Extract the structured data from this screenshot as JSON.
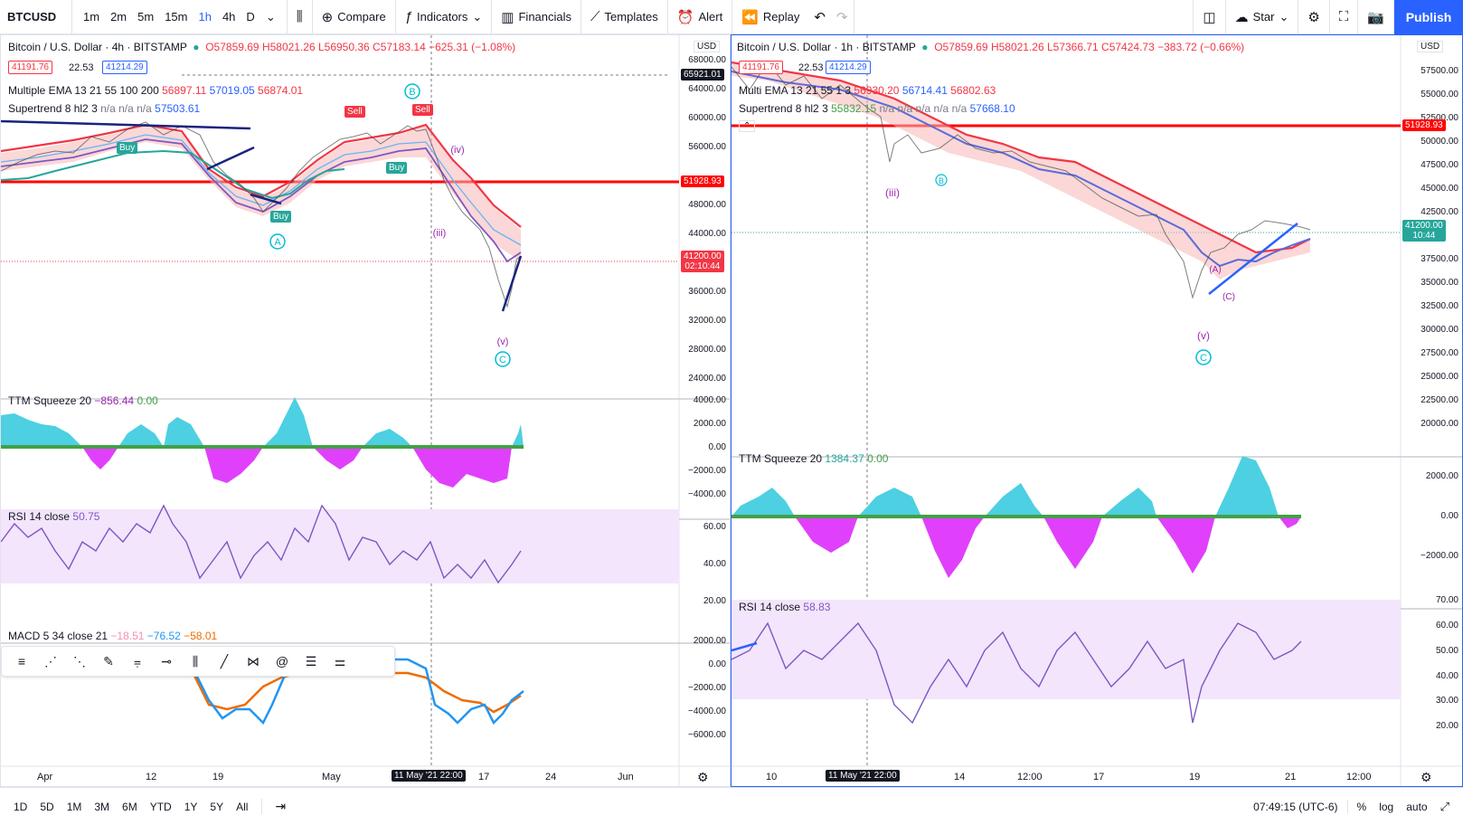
{
  "toolbar": {
    "symbol": "BTCUSD",
    "intervals": [
      "1m",
      "2m",
      "5m",
      "15m",
      "1h",
      "4h",
      "D"
    ],
    "active_interval": "1h",
    "compare": "Compare",
    "indicators": "Indicators",
    "financials": "Financials",
    "templates": "Templates",
    "alert": "Alert",
    "replay": "Replay",
    "star": "Star",
    "publish": "Publish"
  },
  "left_chart": {
    "title": "Bitcoin / U.S. Dollar · 4h · BITSTAMP",
    "ohlc": "O57859.69 H58021.26 L56950.36 C57183.14 −625.31 (−1.08%)",
    "bid": "41191.76",
    "spread": "22.53",
    "ask": "41214.29",
    "ema_legend": "Multiple EMA 13 21 55 100 200",
    "ema_values": [
      "56897.11",
      "57019.05",
      "56874.01"
    ],
    "supertrend_legend": "Supertrend 8 hl2 3",
    "supertrend_values": "n/a n/a n/a",
    "supertrend_last": "57503.61",
    "currency": "USD",
    "price_ticks": [
      "68000.00",
      "64000.00",
      "60000.00",
      "56000.00",
      "52000.00",
      "48000.00",
      "44000.00",
      "40000.00",
      "36000.00",
      "32000.00",
      "28000.00",
      "24000.00"
    ],
    "marker_top": "65921.01",
    "hline_price": "51928.93",
    "last_price": "41200.00",
    "countdown": "02:10:44",
    "ttm_legend": "TTM Squeeze 20",
    "ttm_value": "−856.44",
    "ttm_value2": "0.00",
    "ttm_ticks": [
      "4000.00",
      "2000.00",
      "0.00",
      "−2000.00",
      "−4000.00"
    ],
    "rsi_legend": "RSI 14 close",
    "rsi_value": "50.75",
    "rsi_ticks": [
      "60.00",
      "40.00",
      "20.00"
    ],
    "macd_legend": "MACD 5 34 close 21",
    "macd_values": [
      "−18.51",
      "−76.52",
      "−58.01"
    ],
    "macd_ticks": [
      "2000.00",
      "0.00",
      "−2000.00",
      "−4000.00",
      "−6000.00"
    ],
    "x_labels": [
      "Apr",
      "12",
      "19",
      "May",
      "17",
      "24",
      "Jun"
    ],
    "x_cursor": "11 May '21   22:00",
    "waves": {
      "B": "B",
      "A": "A",
      "C": "C",
      "v": "(v)",
      "iii": "(iii)",
      "iv": "(iv)"
    }
  },
  "right_chart": {
    "title": "Bitcoin / U.S. Dollar · 1h · BITSTAMP",
    "ohlc": "O57859.69 H58021.26 L57366.71 C57424.73 −383.72 (−0.66%)",
    "bid": "41191.76",
    "spread": "22.53",
    "ask": "41214.29",
    "ema_legend": "Multi EMA 13 21 55 1 3",
    "ema_values": [
      "56930.20",
      "56714.41",
      "56802.63"
    ],
    "supertrend_legend": "Supertrend 8 hl2 3",
    "supertrend_first": "55832.15",
    "supertrend_values": "n/a n/a n/a n/a n/a",
    "supertrend_last": "57668.10",
    "currency": "USD",
    "price_ticks": [
      "57500.00",
      "55000.00",
      "52500.00",
      "50000.00",
      "47500.00",
      "45000.00",
      "42500.00",
      "40000.00",
      "37500.00",
      "35000.00",
      "32500.00",
      "30000.00",
      "27500.00",
      "25000.00",
      "22500.00",
      "20000.00"
    ],
    "hline_price": "51928.93",
    "last_price": "41200.00",
    "countdown": "10:44",
    "ttm_legend": "TTM Squeeze 20",
    "ttm_value": "1384.37",
    "ttm_value2": "0.00",
    "ttm_ticks": [
      "2000.00",
      "0.00",
      "−2000.00"
    ],
    "rsi_legend": "RSI 14 close",
    "rsi_value": "58.83",
    "rsi_ticks": [
      "70.00",
      "60.00",
      "50.00",
      "40.00",
      "30.00",
      "20.00"
    ],
    "x_labels": [
      "10",
      "14",
      "12:00",
      "17",
      "19",
      "21",
      "12:00"
    ],
    "x_cursor": "11 May '21   22:00",
    "waves": {
      "iii": "(iii)",
      "B": "B",
      "v": "(v)",
      "C": "C",
      "A": "(A)",
      "Cc": "(C)"
    }
  },
  "bottom": {
    "ranges": [
      "1D",
      "5D",
      "1M",
      "3M",
      "6M",
      "YTD",
      "1Y",
      "5Y",
      "All"
    ],
    "clock": "07:49:15 (UTC-6)",
    "percent": "%",
    "log": "log",
    "auto": "auto"
  },
  "colors": {
    "accent": "#2962ff",
    "red_line": "#ff0000",
    "ema_red": "#f23645",
    "ema_blue": "#5b6bd8",
    "price_label": "#f23645",
    "buy": "#26a69a",
    "sell": "#f23645",
    "rsi_band": "#f3e5fc",
    "wave_teal": "#00bcd4",
    "wave_purple": "#9c27b0"
  }
}
